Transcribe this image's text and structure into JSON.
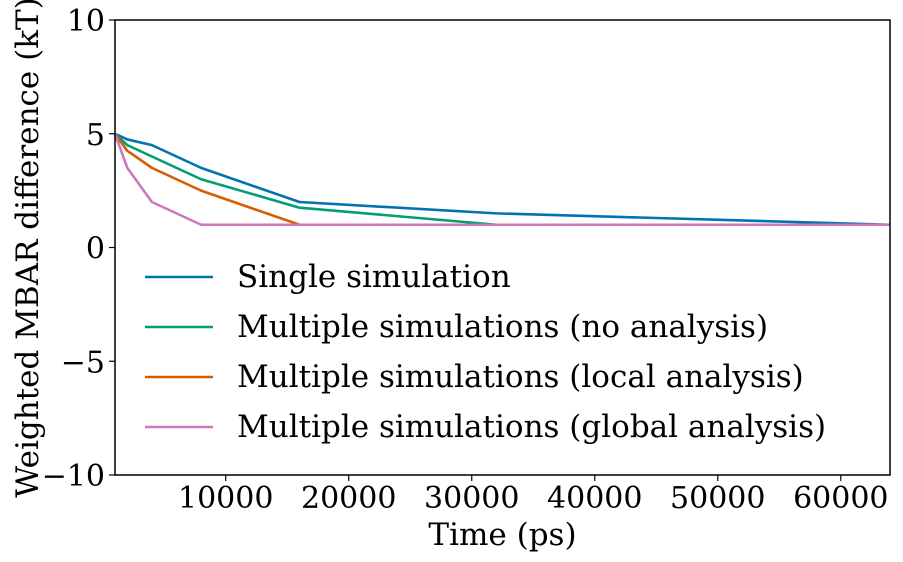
{
  "chart_data": {
    "type": "line",
    "title": "",
    "xlabel": "Time (ps)",
    "ylabel": "Weighted MBAR difference (kT)",
    "xlim": [
      1000,
      64000
    ],
    "ylim": [
      -10,
      10
    ],
    "x_ticks": [
      10000,
      20000,
      30000,
      40000,
      50000,
      60000
    ],
    "y_ticks": [
      -10,
      -5,
      0,
      5,
      10
    ],
    "x_tick_labels": [
      "10000",
      "20000",
      "30000",
      "40000",
      "50000",
      "60000"
    ],
    "y_tick_labels": [
      "−10",
      "−5",
      "0",
      "5",
      "10"
    ],
    "grid": false,
    "legend_position": "lower-left",
    "series": [
      {
        "name": "Single simulation",
        "color": "#0173b2",
        "x": [
          1000,
          2000,
          4000,
          8000,
          16000,
          32000,
          64000
        ],
        "values": [
          5.0,
          4.75,
          4.5,
          3.5,
          2.0,
          1.5,
          1.0
        ]
      },
      {
        "name": "Multiple simulations (no analysis)",
        "color": "#029e73",
        "x": [
          1000,
          2000,
          4000,
          8000,
          16000,
          32000,
          64000
        ],
        "values": [
          5.0,
          4.5,
          4.0,
          3.0,
          1.75,
          1.0,
          1.0
        ]
      },
      {
        "name": "Multiple simulations (local analysis)",
        "color": "#d55e00",
        "x": [
          1000,
          2000,
          4000,
          8000,
          16000,
          32000,
          64000
        ],
        "values": [
          5.0,
          4.25,
          3.5,
          2.5,
          1.0,
          1.0,
          1.0
        ]
      },
      {
        "name": "Multiple simulations (global analysis)",
        "color": "#cc78bc",
        "x": [
          1000,
          2000,
          4000,
          8000,
          16000,
          32000,
          64000
        ],
        "values": [
          5.0,
          3.5,
          2.0,
          1.0,
          1.0,
          1.0,
          1.0
        ]
      }
    ]
  }
}
